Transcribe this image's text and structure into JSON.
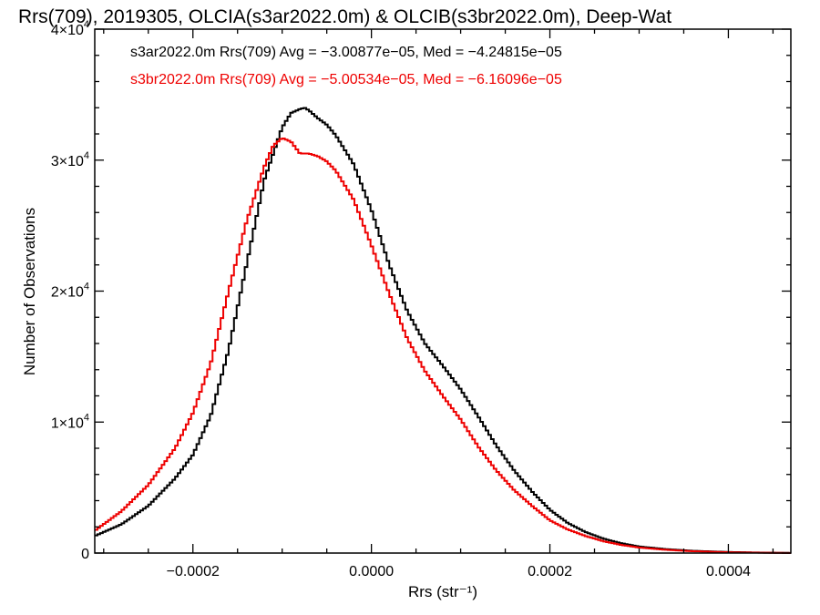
{
  "chart_data": {
    "type": "line",
    "title": "Rrs(709), 2019305, OLCIA(s3ar2022.0m) & OLCIB(s3br2022.0m), Deep-Wat",
    "xlabel": "Rrs (str⁻¹)",
    "ylabel": "Number of Observations",
    "xlim": [
      -0.00031,
      0.00047
    ],
    "ylim": [
      0,
      40000
    ],
    "x_ticks": [
      -0.0002,
      0.0,
      0.0002,
      0.0004
    ],
    "x_tick_labels": [
      "−0.0002",
      "0.0000",
      "0.0002",
      "0.0004"
    ],
    "y_ticks": [
      0,
      10000,
      20000,
      30000,
      40000
    ],
    "y_tick_labels": [
      {
        "mantissa": "0",
        "exp": ""
      },
      {
        "mantissa": "1×10",
        "exp": "4"
      },
      {
        "mantissa": "2×10",
        "exp": "4"
      },
      {
        "mantissa": "3×10",
        "exp": "4"
      },
      {
        "mantissa": "4×10",
        "exp": "4"
      }
    ],
    "legend": [
      {
        "text": "s3ar2022.0m Rrs(709) Avg = −3.00877e−05, Med = −4.24815e−05",
        "color": "#000000"
      },
      {
        "text": "s3br2022.0m Rrs(709) Avg = −5.00534e−05, Med = −6.16096e−05",
        "color": "#ee0000"
      }
    ],
    "legend_position": "top-left",
    "series": [
      {
        "color": "#000000",
        "x": [
          -0.00031,
          -0.00028,
          -0.00025,
          -0.00022,
          -0.0002,
          -0.00018,
          -0.00016,
          -0.00014,
          -0.00012,
          -0.0001,
          -9e-05,
          -8e-05,
          -7.5e-05,
          -7e-05,
          -6e-05,
          -5e-05,
          -4e-05,
          -2e-05,
          0.0,
          2e-05,
          4e-05,
          6e-05,
          8e-05,
          0.0001,
          0.00012,
          0.00014,
          0.00016,
          0.00018,
          0.0002,
          0.00022,
          0.00024,
          0.00026,
          0.00028,
          0.0003,
          0.00033,
          0.00036,
          0.0004,
          0.00044,
          0.00047
        ],
        "y": [
          1300,
          2200,
          3600,
          5700,
          7500,
          10500,
          15500,
          22000,
          28500,
          32500,
          33600,
          33900,
          34000,
          33800,
          33200,
          32700,
          31900,
          29700,
          26200,
          22000,
          18500,
          16000,
          14300,
          12500,
          10400,
          8200,
          6300,
          4700,
          3300,
          2300,
          1600,
          1100,
          750,
          500,
          300,
          170,
          80,
          30,
          10
        ]
      },
      {
        "color": "#ee0000",
        "x": [
          -0.00031,
          -0.00028,
          -0.00025,
          -0.00022,
          -0.0002,
          -0.00018,
          -0.00016,
          -0.00014,
          -0.00012,
          -0.00011,
          -0.0001,
          -9e-05,
          -8e-05,
          -7e-05,
          -6e-05,
          -5e-05,
          -4e-05,
          -2e-05,
          0.0,
          2e-05,
          4e-05,
          6e-05,
          8e-05,
          0.0001,
          0.00012,
          0.00014,
          0.00016,
          0.00018,
          0.0002,
          0.00022,
          0.00024,
          0.00026,
          0.00028,
          0.0003,
          0.00033,
          0.00036,
          0.0004,
          0.00044,
          0.00047
        ],
        "y": [
          1700,
          3200,
          5200,
          8000,
          10700,
          14500,
          20000,
          25300,
          29500,
          31100,
          31700,
          31400,
          30500,
          30500,
          30300,
          29900,
          29200,
          27000,
          23500,
          19800,
          16400,
          13900,
          12000,
          10200,
          8100,
          6300,
          4800,
          3600,
          2500,
          1800,
          1300,
          900,
          620,
          420,
          250,
          140,
          60,
          25,
          8
        ]
      }
    ]
  }
}
